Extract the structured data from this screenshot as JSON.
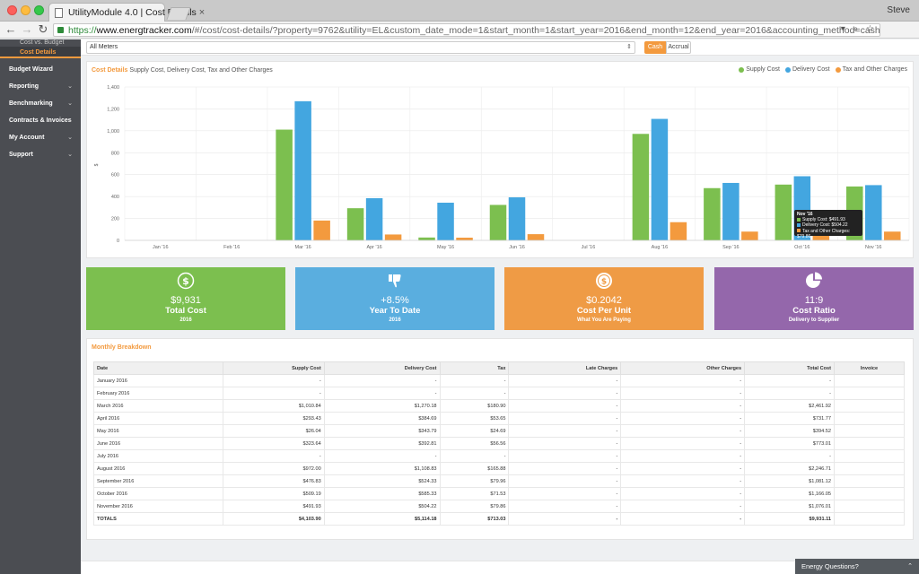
{
  "browser": {
    "tab_title": "UtilityModule 4.0 | Cost Details",
    "tab_close": "×",
    "user_name": "Steve",
    "url_scheme": "https://",
    "url_host": "www.energtracker.com",
    "url_path": "/#/cost/cost-details/?property=9762&utility=EL&custom_date_mode=1&start_month=1&start_year=2016&end_month=12&end_year=2016&accounting_method=cash",
    "url_icons": "▾ ⌕ ☆",
    "icons": [
      "back-arrow-icon",
      "forward-arrow-icon",
      "reload-icon",
      "lock-icon",
      "extension-icon",
      "menu-icon"
    ]
  },
  "sidebar": {
    "sub_items": [
      {
        "label": "Cost vs. Budget"
      },
      {
        "label": "Cost Details"
      }
    ],
    "items": [
      {
        "label": "Budget Wizard",
        "chevron": ""
      },
      {
        "label": "Reporting",
        "chevron": "⌄"
      },
      {
        "label": "Benchmarking",
        "chevron": "⌄"
      },
      {
        "label": "Contracts & Invoices",
        "chevron": "⌄"
      },
      {
        "label": "My Account",
        "chevron": "⌄"
      },
      {
        "label": "Support",
        "chevron": "⌄"
      }
    ]
  },
  "filters": {
    "meter_value": "All Meters",
    "meter_arrow": "⇕",
    "cash_label": "Cash",
    "accrual_label": "Accrual"
  },
  "chart_panel": {
    "title_accent": "Cost Details",
    "title_rest": "Supply Cost, Delivery Cost, Tax and Other Charges",
    "legend": [
      {
        "label": "Supply Cost",
        "color": "#7cbf4f"
      },
      {
        "label": "Delivery Cost",
        "color": "#43a6e0"
      },
      {
        "label": "Tax and Other Charges",
        "color": "#f39a3e"
      }
    ]
  },
  "chart_data": {
    "type": "bar",
    "categories": [
      "Jan '16",
      "Feb '16",
      "Mar '16",
      "Apr '16",
      "May '16",
      "Jun '16",
      "Jul '16",
      "Aug '16",
      "Sep '16",
      "Oct '16",
      "Nov '16"
    ],
    "series": [
      {
        "name": "Supply Cost",
        "color": "#7cbf4f",
        "values": [
          0,
          0,
          1010.84,
          293.43,
          26.04,
          323.64,
          0,
          972.0,
          476.83,
          509.19,
          491.93
        ]
      },
      {
        "name": "Delivery Cost",
        "color": "#43a6e0",
        "values": [
          0,
          0,
          1270.18,
          384.69,
          343.79,
          392.81,
          0,
          1108.83,
          524.33,
          585.33,
          504.22
        ]
      },
      {
        "name": "Tax and Other Charges",
        "color": "#f39a3e",
        "values": [
          0,
          0,
          180.9,
          53.65,
          24.69,
          56.56,
          0,
          165.88,
          79.96,
          71.53,
          79.86
        ]
      }
    ],
    "ylabel": "$",
    "ylim": [
      0,
      1400
    ],
    "yticks": [
      "0",
      "200",
      "400",
      "600",
      "800",
      "1,000",
      "1,200",
      "1,400"
    ],
    "grid": true,
    "legend_position": "top-right",
    "tooltip": {
      "title": "Nov '16",
      "lines": [
        {
          "text": "Supply Cost: $491.93",
          "color": "#7cbf4f"
        },
        {
          "text": "Delivery Cost: $504.22",
          "color": "#43a6e0"
        },
        {
          "text": "Tax and Other Charges: $79.86",
          "color": "#f39a3e"
        }
      ]
    }
  },
  "kpis": [
    {
      "icon": "dollar-circle-icon",
      "value": "$9,931",
      "label": "Total Cost",
      "sub": "2016",
      "color": "#7cbf4f"
    },
    {
      "icon": "thumbs-down-icon",
      "value": "+8.5%",
      "label": "Year To Date",
      "sub": "2016",
      "color": "#5aaedf"
    },
    {
      "icon": "coin-icon",
      "value": "$0.2042",
      "label": "Cost Per Unit",
      "sub": "What You Are Paying",
      "color": "#ef9b45"
    },
    {
      "icon": "pie-chart-icon",
      "value": "11:9",
      "label": "Cost Ratio",
      "sub": "Delivery to Supplier",
      "color": "#9467ab"
    }
  ],
  "breakdown": {
    "title": "Monthly Breakdown",
    "columns": [
      "Date",
      "Supply Cost",
      "Delivery Cost",
      "Tax",
      "Late Charges",
      "Other Charges",
      "Total Cost",
      "Invoice"
    ],
    "rows": [
      [
        "January 2016",
        "-",
        "-",
        "-",
        "-",
        "-",
        "-",
        ""
      ],
      [
        "February 2016",
        "-",
        "-",
        "-",
        "-",
        "-",
        "-",
        ""
      ],
      [
        "March 2016",
        "$1,010.84",
        "$1,270.18",
        "$180.90",
        "-",
        "-",
        "$2,461.92",
        ""
      ],
      [
        "April 2016",
        "$293.43",
        "$384.69",
        "$53.65",
        "-",
        "-",
        "$731.77",
        ""
      ],
      [
        "May 2016",
        "$26.04",
        "$343.79",
        "$24.69",
        "-",
        "-",
        "$394.52",
        ""
      ],
      [
        "June 2016",
        "$323.64",
        "$392.81",
        "$56.56",
        "-",
        "-",
        "$773.01",
        ""
      ],
      [
        "July 2016",
        "-",
        "-",
        "-",
        "-",
        "-",
        "-",
        ""
      ],
      [
        "August 2016",
        "$972.00",
        "$1,108.83",
        "$165.88",
        "-",
        "-",
        "$2,246.71",
        ""
      ],
      [
        "September 2016",
        "$476.83",
        "$524.33",
        "$79.96",
        "-",
        "-",
        "$1,081.12",
        ""
      ],
      [
        "October 2016",
        "$509.19",
        "$585.33",
        "$71.53",
        "-",
        "-",
        "$1,166.05",
        ""
      ],
      [
        "November 2016",
        "$491.93",
        "$504.22",
        "$79.86",
        "-",
        "-",
        "$1,076.01",
        ""
      ]
    ],
    "totals": [
      "TOTALS",
      "$4,103.90",
      "$5,114.18",
      "$713.03",
      "-",
      "-",
      "$9,931.11",
      ""
    ]
  },
  "footer": {
    "energy_questions": "Energy Questions?",
    "caret": "⌃"
  }
}
